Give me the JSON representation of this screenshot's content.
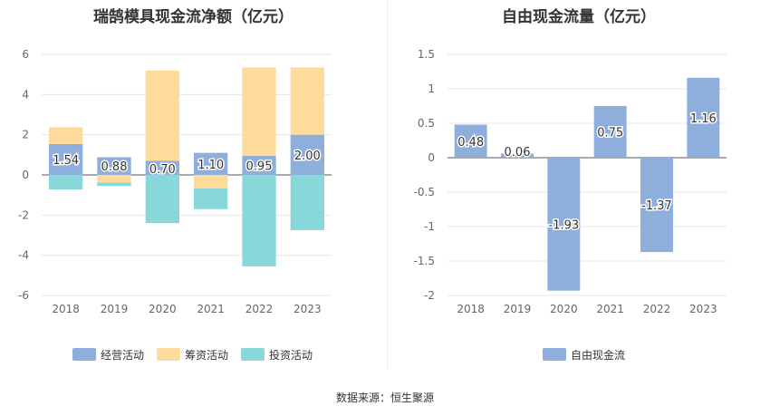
{
  "chart_data": [
    {
      "type": "bar",
      "stacked": true,
      "title": "瑞鹄模具现金流净额（亿元）",
      "categories": [
        "2018",
        "2019",
        "2020",
        "2021",
        "2022",
        "2023"
      ],
      "ylim": [
        -6,
        6
      ],
      "yticks": [
        -6,
        -4,
        -2,
        0,
        2,
        4,
        6
      ],
      "grid": true,
      "legend_position": "bottom",
      "series": [
        {
          "name": "经营活动",
          "color": "#8eaedc",
          "values": [
            1.54,
            0.88,
            0.7,
            1.1,
            0.95,
            2.0
          ]
        },
        {
          "name": "筹资活动",
          "color": "#fedb9b",
          "values": [
            0.83,
            -0.38,
            4.5,
            -0.67,
            4.4,
            3.35
          ]
        },
        {
          "name": "投资活动",
          "color": "#88d8da",
          "values": [
            -0.72,
            -0.17,
            -2.4,
            -1.03,
            -4.55,
            -2.75
          ]
        }
      ],
      "data_labels": [
        "1.54",
        "0.88",
        "0.70",
        "1.10",
        "0.95",
        "2.00"
      ]
    },
    {
      "type": "bar",
      "title": "自由现金流量（亿元）",
      "categories": [
        "2018",
        "2019",
        "2020",
        "2021",
        "2022",
        "2023"
      ],
      "ylim": [
        -2,
        1.5
      ],
      "yticks": [
        "1.5",
        "1",
        "0.5",
        "0",
        "-0.5",
        "-1",
        "-1.5",
        "-2"
      ],
      "grid": true,
      "legend_position": "bottom",
      "series": [
        {
          "name": "自由现金流",
          "color": "#8eaedc",
          "values": [
            0.48,
            0.06,
            -1.93,
            0.75,
            -1.37,
            1.16
          ]
        }
      ],
      "data_labels": [
        "0.48",
        "0.06",
        "-1.93",
        "0.75",
        "-1.37",
        "1.16"
      ]
    }
  ],
  "footer": "数据来源：恒生聚源"
}
